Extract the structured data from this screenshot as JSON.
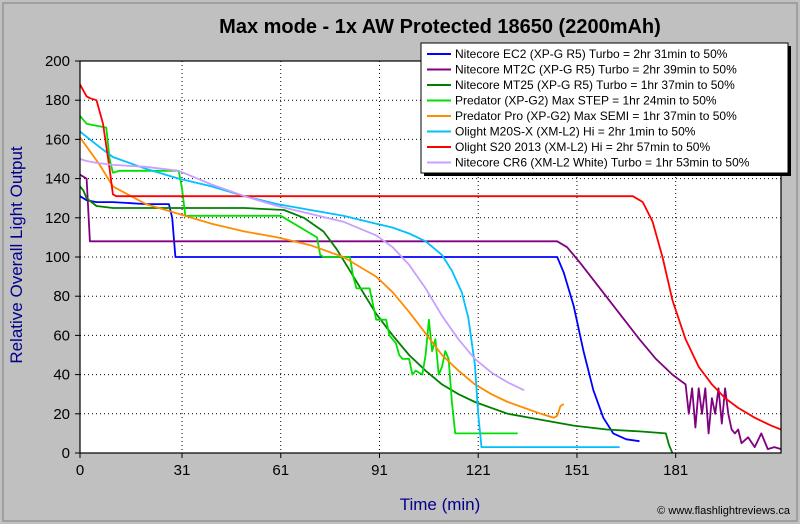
{
  "chart_data": {
    "type": "line",
    "title": "Max mode - 1x AW Protected 18650 (2200mAh)",
    "xlabel": "Time (min)",
    "ylabel": "Relative Overall Light Output",
    "xlim": [
      0,
      213
    ],
    "ylim": [
      0,
      200
    ],
    "xticks": [
      0,
      31,
      61,
      91,
      121,
      151,
      181
    ],
    "yticks": [
      0,
      20,
      40,
      60,
      80,
      100,
      120,
      140,
      160,
      180,
      200
    ],
    "grid": "horizontal and vertical",
    "legend_position": "top-right",
    "credit": "© www.flashlightreviews.ca",
    "series": [
      {
        "name": "Nitecore EC2 (XP-G R5) Turbo = 2hr 31min to 50%",
        "color": "#0000ff",
        "x": [
          0,
          2,
          5,
          10,
          20,
          27,
          28,
          29,
          40,
          80,
          120,
          145,
          147,
          150,
          153,
          156,
          159,
          162,
          166,
          170
        ],
        "y": [
          131,
          129,
          128,
          128,
          127,
          127,
          120,
          100,
          100,
          100,
          100,
          100,
          92,
          75,
          52,
          32,
          18,
          10,
          7,
          6
        ]
      },
      {
        "name": "Nitecore MT2C (XP-G R5) Turbo = 2hr 39min to 50%",
        "color": "#800080",
        "x": [
          0,
          1,
          2,
          3,
          10,
          40,
          80,
          120,
          145,
          148,
          152,
          158,
          164,
          170,
          175,
          180,
          184,
          185,
          186,
          187,
          188,
          189,
          190,
          191,
          192,
          193,
          194,
          195,
          196,
          197,
          198,
          199,
          200,
          201,
          203,
          205,
          207,
          209,
          211,
          213
        ],
        "y": [
          142,
          141,
          140,
          108,
          108,
          108,
          108,
          108,
          108,
          105,
          97,
          84,
          71,
          58,
          48,
          40,
          35,
          20,
          33,
          13,
          33,
          20,
          33,
          10,
          28,
          20,
          33,
          15,
          33,
          20,
          12,
          10,
          12,
          5,
          8,
          3,
          10,
          2,
          3,
          2
        ]
      },
      {
        "name": "Nitecore MT25 (XP-G R5) Turbo = 1hr 37min to 50%",
        "color": "#008000",
        "x": [
          0,
          1,
          2,
          5,
          10,
          30,
          50,
          62,
          68,
          74,
          78,
          82,
          86,
          90,
          95,
          100,
          105,
          110,
          115,
          120,
          130,
          140,
          150,
          160,
          170,
          178,
          179,
          180
        ],
        "y": [
          136,
          134,
          130,
          126,
          125,
          125,
          125,
          124,
          120,
          113,
          104,
          93,
          82,
          71,
          60,
          50,
          42,
          35,
          30,
          26,
          20,
          17,
          14,
          12,
          11,
          10,
          4,
          0
        ]
      },
      {
        "name": "Predator (XP-G2) Max STEP = 1hr 24min to 50%",
        "color": "#00e000",
        "x": [
          0,
          1,
          2,
          5,
          8,
          9,
          10,
          12,
          30,
          31,
          32,
          60,
          61,
          72,
          73,
          74,
          82,
          83,
          84,
          88,
          89,
          90,
          91,
          93,
          94,
          96,
          97,
          98,
          100,
          101,
          102,
          104,
          105,
          106,
          107,
          108,
          109,
          110,
          111,
          112,
          113,
          114,
          120,
          121,
          133
        ],
        "y": [
          172,
          170,
          168,
          167,
          166,
          150,
          143,
          144,
          144,
          135,
          121,
          121,
          121,
          110,
          101,
          100,
          100,
          90,
          84,
          84,
          76,
          68,
          68,
          68,
          60,
          56,
          50,
          48,
          48,
          40,
          42,
          40,
          50,
          68,
          52,
          58,
          40,
          44,
          52,
          48,
          26,
          10,
          10,
          10,
          10
        ]
      },
      {
        "name": "Predator Pro (XP-G2) Max SEMI = 1hr 37min to 50%",
        "color": "#ff8c00",
        "x": [
          0,
          3,
          6,
          10,
          20,
          30,
          40,
          50,
          60,
          70,
          80,
          90,
          95,
          100,
          105,
          110,
          115,
          120,
          125,
          130,
          135,
          140,
          144,
          145,
          146,
          147
        ],
        "y": [
          161,
          154,
          147,
          136,
          127,
          122,
          117,
          113,
          110,
          106,
          100,
          90,
          82,
          72,
          61,
          50,
          42,
          35,
          30,
          26,
          23,
          20,
          18,
          19,
          24,
          25
        ]
      },
      {
        "name": "Olight M20S-X (XM-L2) Hi = 2hr 1min to 50%",
        "color": "#00c0ff",
        "x": [
          0,
          3,
          6,
          10,
          20,
          30,
          40,
          50,
          60,
          70,
          80,
          90,
          95,
          100,
          105,
          110,
          113,
          116,
          118,
          120,
          121,
          122,
          124,
          130,
          140,
          150,
          160,
          164
        ],
        "y": [
          164,
          160,
          156,
          151,
          145,
          140,
          136,
          131,
          127,
          124,
          121,
          117,
          115,
          112,
          108,
          101,
          93,
          82,
          69,
          45,
          20,
          3,
          3,
          3,
          3,
          3,
          3,
          3
        ]
      },
      {
        "name": "Olight S20 2013 (XM-L2) Hi = 2hr 57min to 50%",
        "color": "#ff0000",
        "x": [
          0,
          1,
          2,
          3,
          5,
          7,
          9,
          10,
          11,
          15,
          40,
          80,
          120,
          160,
          168,
          171,
          174,
          177,
          180,
          184,
          188,
          192,
          196,
          200,
          205,
          210,
          213
        ],
        "y": [
          188,
          185,
          182,
          181,
          180,
          168,
          145,
          132,
          131,
          131,
          131,
          131,
          131,
          131,
          131,
          128,
          118,
          100,
          78,
          58,
          44,
          35,
          28,
          23,
          18,
          14,
          12
        ]
      },
      {
        "name": "Nitecore CR6 (XM-L2 White) Turbo = 1hr 53min to 50%",
        "color": "#c8a0ff",
        "x": [
          0,
          2,
          5,
          10,
          20,
          30,
          40,
          50,
          60,
          70,
          80,
          90,
          95,
          100,
          105,
          110,
          115,
          120,
          125,
          130,
          135
        ],
        "y": [
          150,
          149,
          148,
          147,
          146,
          144,
          137,
          131,
          126,
          122,
          118,
          111,
          105,
          96,
          84,
          70,
          58,
          48,
          41,
          36,
          32
        ]
      }
    ]
  }
}
